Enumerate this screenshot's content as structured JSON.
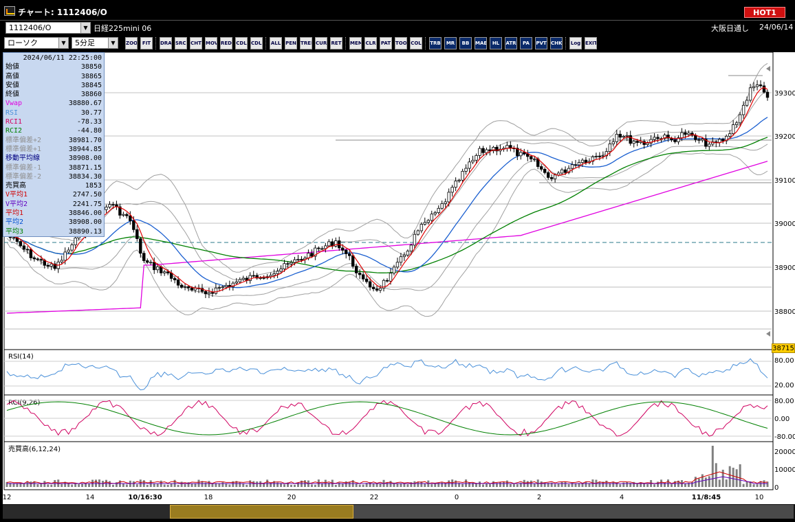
{
  "window": {
    "title": "チャート: 1112406/O",
    "hot_label": "HOT1"
  },
  "symbol": {
    "code": "1112406/O",
    "name": "日経225mini 06",
    "session": "大阪日通し",
    "date": "24/06/14"
  },
  "controls": {
    "chart_type": "ローソク",
    "interval": "5分足"
  },
  "toolbar": [
    "ZOOM",
    "FIT",
    "DRAW",
    "SRCH",
    "CHT",
    "MOV",
    "RED",
    "CDL",
    "CDL2",
    "ALL",
    "PEN",
    "TREND",
    "CUR",
    "RET",
    "MEMO",
    "CLR",
    "PAT",
    "TOOL",
    "COL",
    "TRB",
    "MR",
    "BB",
    "MAE",
    "HL",
    "ATR",
    "PA",
    "PVT",
    "CHK",
    "Log",
    "EXIT"
  ],
  "info": {
    "datetime": "2024/06/11  22:25:00",
    "rows": [
      {
        "label": "始値",
        "value": "38850",
        "color": "#000000"
      },
      {
        "label": "高値",
        "value": "38865",
        "color": "#000000"
      },
      {
        "label": "安値",
        "value": "38845",
        "color": "#000000"
      },
      {
        "label": "終値",
        "value": "38860",
        "color": "#000000"
      },
      {
        "label": "Vwap",
        "value": "38880.67",
        "color": "#e000e0"
      },
      {
        "label": "RSI",
        "value": "30.77",
        "color": "#4a90d9"
      },
      {
        "label": "RCI1",
        "value": "-78.33",
        "color": "#d00060"
      },
      {
        "label": "RCI2",
        "value": "-44.80",
        "color": "#008000"
      },
      {
        "label": "標準偏差+2",
        "value": "38981.70",
        "color": "#909090"
      },
      {
        "label": "標準偏差+1",
        "value": "38944.85",
        "color": "#909090"
      },
      {
        "label": "移動平均線",
        "value": "38908.00",
        "color": "#000080"
      },
      {
        "label": "標準偏差-1",
        "value": "38871.15",
        "color": "#909090"
      },
      {
        "label": "標準偏差-2",
        "value": "38834.30",
        "color": "#909090"
      },
      {
        "label": "売買高",
        "value": "1853",
        "color": "#000000"
      },
      {
        "label": "V平均1",
        "value": "2747.50",
        "color": "#d00000"
      },
      {
        "label": "V平均2",
        "value": "2241.75",
        "color": "#6000c0"
      },
      {
        "label": "平均1",
        "value": "38846.00",
        "color": "#d00000"
      },
      {
        "label": "平均2",
        "value": "38908.00",
        "color": "#0050d0"
      },
      {
        "label": "平均3",
        "value": "38890.13",
        "color": "#008000"
      }
    ]
  },
  "price_axis": [
    "39300",
    "39200",
    "39100",
    "39000",
    "38900",
    "38800"
  ],
  "current_price": "38715",
  "rsi": {
    "label": "RSI(14)",
    "ticks": [
      "80.00",
      "20.00"
    ]
  },
  "rci": {
    "label": "RCI(9,26)",
    "ticks": [
      "80.00",
      "0.00",
      "-80.00"
    ]
  },
  "volume": {
    "label": "売買高(6,12,24)",
    "ticks": [
      "20000",
      "10000",
      "0"
    ]
  },
  "time_axis": [
    "12",
    "14",
    "10/16:30",
    "18",
    "20",
    "22",
    "0",
    "2",
    "4",
    "11/8:45",
    "10"
  ],
  "colors": {
    "candle_up": "#ffffff",
    "candle_down": "#000000",
    "ma_short": "#e00000",
    "ma_mid": "#1a5fd0",
    "ma_long": "#008000",
    "vwap": "#e000e0",
    "bands": "#a0a0a0"
  }
}
